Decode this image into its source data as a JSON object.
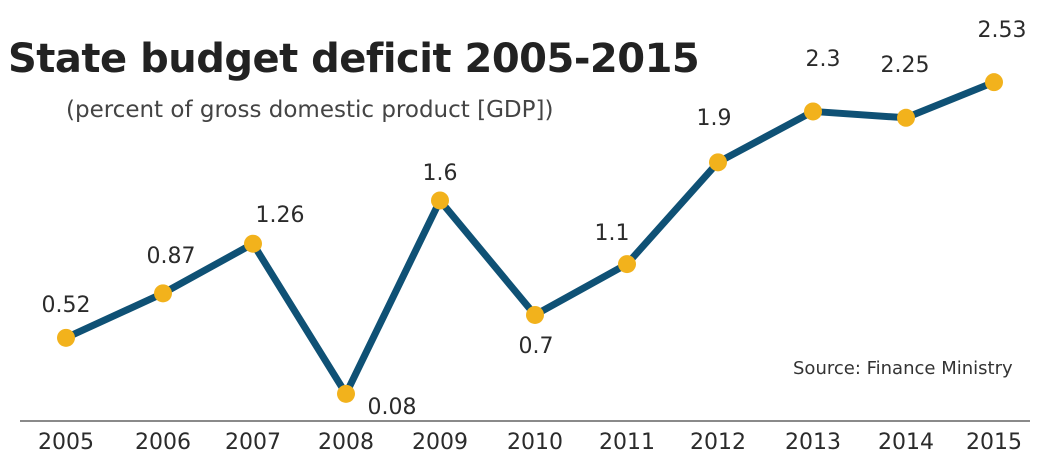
{
  "header": {
    "title": "State budget deficit 2005-2015",
    "subtitle": "(percent of gross domestic product [GDP])"
  },
  "source": "Source: Finance Ministry",
  "colors": {
    "line": "#0f5175",
    "marker": "#f2b21c",
    "axis": "#8a8a8a"
  },
  "chart_data": {
    "type": "line",
    "title": "State budget deficit 2005-2015",
    "subtitle": "(percent of gross domestic product [GDP])",
    "categories": [
      "2005",
      "2006",
      "2007",
      "2008",
      "2009",
      "2010",
      "2011",
      "2012",
      "2013",
      "2014",
      "2015"
    ],
    "series": [
      {
        "values": [
          0.52,
          0.87,
          1.26,
          0.08,
          1.6,
          0.7,
          1.1,
          1.9,
          2.3,
          2.25,
          2.53
        ],
        "labels": [
          "0.52",
          "0.87",
          "1.26",
          "0.08",
          "1.6",
          "0.7",
          "1.1",
          "1.9",
          "2.3",
          "2.25",
          "2.53"
        ]
      }
    ],
    "ylim": [
      0,
      2.6
    ],
    "grid": false,
    "legend": "none",
    "annotation": "Source: Finance Ministry"
  }
}
